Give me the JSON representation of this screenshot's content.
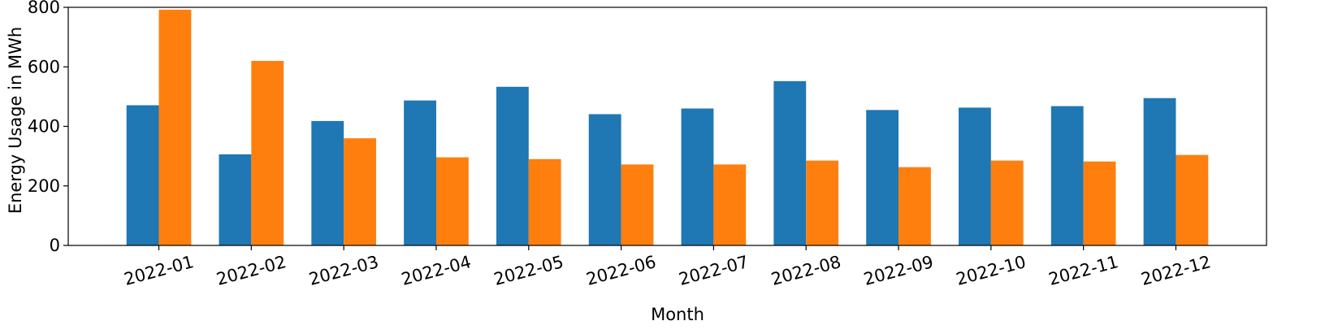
{
  "chart_data": {
    "type": "bar",
    "title": "",
    "xlabel": "Month",
    "ylabel": "Energy Usage in MWh",
    "categories": [
      "2022-01",
      "2022-02",
      "2022-03",
      "2022-04",
      "2022-05",
      "2022-06",
      "2022-07",
      "2022-08",
      "2022-09",
      "2022-10",
      "2022-11",
      "2022-12"
    ],
    "series": [
      {
        "values": [
          471,
          306,
          418,
          487,
          533,
          441,
          460,
          552,
          455,
          463,
          468,
          495
        ],
        "color": "#1f77b4"
      },
      {
        "values": [
          792,
          620,
          360,
          296,
          290,
          272,
          272,
          285,
          263,
          285,
          282,
          304
        ],
        "color": "#ff7f0e"
      }
    ],
    "ylim": [
      0,
      800
    ],
    "yticks": [
      0,
      200,
      400,
      600,
      800
    ],
    "grid": false,
    "legend": "none"
  }
}
